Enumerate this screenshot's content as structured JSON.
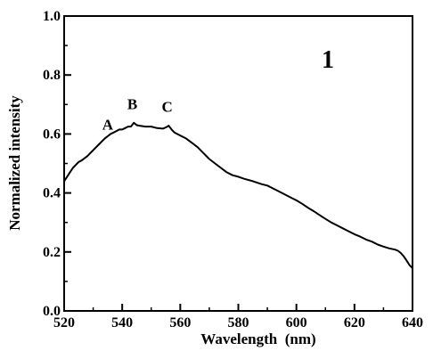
{
  "chart_data": {
    "type": "line",
    "title": "",
    "panel_label": "1",
    "xlabel": "Wavelength  (nm)",
    "ylabel": "Normalized intensity",
    "xlim": [
      520,
      640
    ],
    "ylim": [
      0.0,
      1.0
    ],
    "x_ticks": [
      520,
      540,
      560,
      580,
      600,
      620,
      640
    ],
    "y_ticks": [
      "0.0",
      "0.2",
      "0.4",
      "0.6",
      "0.8",
      "1.0"
    ],
    "grid": false,
    "annotations": [
      {
        "text": "A",
        "x": 535.0,
        "y": 0.615
      },
      {
        "text": "B",
        "x": 543.5,
        "y": 0.685
      },
      {
        "text": "C",
        "x": 555.5,
        "y": 0.675
      }
    ],
    "series": [
      {
        "x": [
          520,
          521,
          522,
          523,
          524,
          525,
          526,
          528,
          530,
          532,
          534,
          536,
          538,
          539,
          540,
          541,
          542,
          543,
          544,
          545,
          546,
          548,
          550,
          552,
          554,
          555,
          556,
          557,
          558,
          560,
          562,
          564,
          566,
          568,
          570,
          572,
          574,
          576,
          578,
          580,
          582,
          585,
          588,
          590,
          592,
          594,
          596,
          598,
          600,
          602,
          604,
          606,
          608,
          610,
          612,
          614,
          616,
          618,
          620,
          622,
          624,
          626,
          628,
          630,
          632,
          634,
          635,
          636,
          637,
          638,
          639,
          640
        ],
        "y": [
          0.44,
          0.455,
          0.47,
          0.485,
          0.495,
          0.505,
          0.51,
          0.525,
          0.545,
          0.565,
          0.585,
          0.6,
          0.61,
          0.615,
          0.615,
          0.62,
          0.625,
          0.625,
          0.638,
          0.63,
          0.628,
          0.625,
          0.625,
          0.62,
          0.618,
          0.622,
          0.628,
          0.615,
          0.605,
          0.595,
          0.585,
          0.57,
          0.555,
          0.535,
          0.515,
          0.5,
          0.485,
          0.47,
          0.46,
          0.455,
          0.448,
          0.44,
          0.43,
          0.425,
          0.415,
          0.405,
          0.395,
          0.385,
          0.375,
          0.363,
          0.35,
          0.338,
          0.325,
          0.312,
          0.3,
          0.29,
          0.28,
          0.27,
          0.26,
          0.252,
          0.242,
          0.235,
          0.225,
          0.218,
          0.212,
          0.208,
          0.204,
          0.196,
          0.185,
          0.17,
          0.155,
          0.145
        ]
      }
    ]
  }
}
